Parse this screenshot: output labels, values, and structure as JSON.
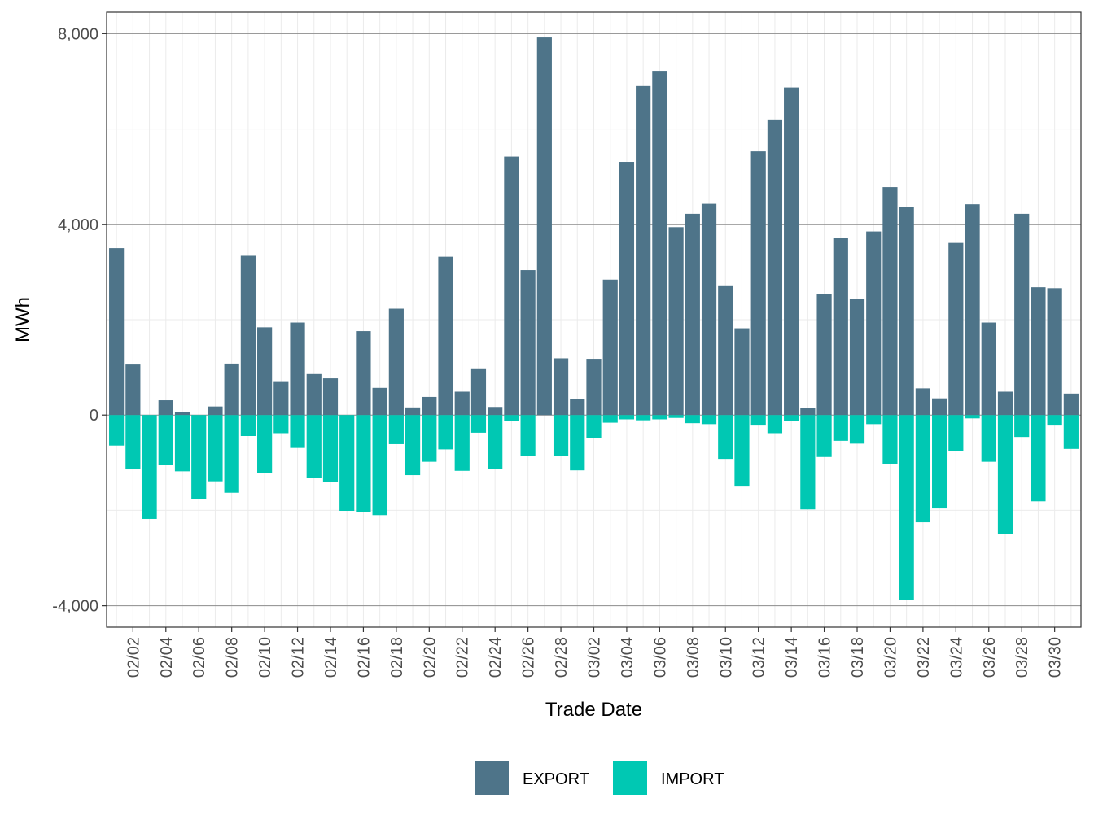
{
  "chart_data": {
    "type": "bar",
    "stacked": "diverging",
    "xlabel": "Trade Date",
    "ylabel": "MWh",
    "ylim": [
      -4450,
      8450
    ],
    "yticks": [
      -4000,
      0,
      4000,
      8000
    ],
    "ytick_labels": [
      "-4,000",
      "0",
      "4,000",
      "8,000"
    ],
    "grid": true,
    "legend_position": "bottom",
    "x": [
      "02/01",
      "02/02",
      "02/03",
      "02/04",
      "02/05",
      "02/06",
      "02/07",
      "02/08",
      "02/09",
      "02/10",
      "02/11",
      "02/12",
      "02/13",
      "02/14",
      "02/15",
      "02/16",
      "02/17",
      "02/18",
      "02/19",
      "02/20",
      "02/21",
      "02/22",
      "02/23",
      "02/24",
      "02/25",
      "02/26",
      "02/27",
      "02/28",
      "03/01",
      "03/02",
      "03/03",
      "03/04",
      "03/05",
      "03/06",
      "03/07",
      "03/08",
      "03/09",
      "03/10",
      "03/11",
      "03/12",
      "03/13",
      "03/14",
      "03/15",
      "03/16",
      "03/17",
      "03/18",
      "03/19",
      "03/20",
      "03/21",
      "03/22",
      "03/23",
      "03/24",
      "03/25",
      "03/26",
      "03/27",
      "03/28",
      "03/29",
      "03/30",
      "03/31"
    ],
    "xtick_labels": [
      "02/02",
      "02/04",
      "02/06",
      "02/08",
      "02/10",
      "02/12",
      "02/14",
      "02/16",
      "02/18",
      "02/20",
      "02/22",
      "02/24",
      "02/26",
      "02/28",
      "03/02",
      "03/04",
      "03/06",
      "03/08",
      "03/10",
      "03/12",
      "03/14",
      "03/16",
      "03/18",
      "03/20",
      "03/22",
      "03/24",
      "03/26",
      "03/28",
      "03/30"
    ],
    "series": [
      {
        "name": "EXPORT",
        "color": "#4e7489",
        "values": [
          3500,
          1060,
          0,
          310,
          60,
          0,
          180,
          1080,
          3340,
          1840,
          710,
          1940,
          860,
          770,
          0,
          1760,
          570,
          2230,
          160,
          380,
          3320,
          490,
          980,
          170,
          5420,
          3040,
          7920,
          1190,
          330,
          1180,
          2840,
          5310,
          6900,
          7220,
          3940,
          4220,
          4430,
          2720,
          1820,
          5530,
          6200,
          6870,
          140,
          2540,
          3710,
          2440,
          3850,
          4780,
          4370,
          560,
          350,
          3610,
          4420,
          1940,
          490,
          4220,
          2680,
          2660,
          450
        ]
      },
      {
        "name": "IMPORT",
        "color": "#00c8b3",
        "values": [
          -640,
          -1140,
          -2180,
          -1050,
          -1180,
          -1760,
          -1390,
          -1630,
          -440,
          -1220,
          -380,
          -690,
          -1320,
          -1400,
          -2010,
          -2030,
          -2100,
          -610,
          -1260,
          -980,
          -720,
          -1170,
          -370,
          -1130,
          -130,
          -850,
          0,
          -860,
          -1160,
          -480,
          -160,
          -90,
          -110,
          -90,
          -60,
          -170,
          -190,
          -920,
          -1500,
          -220,
          -380,
          -130,
          -1980,
          -880,
          -540,
          -600,
          -190,
          -1020,
          -3870,
          -2250,
          -1960,
          -750,
          -70,
          -980,
          -2500,
          -460,
          -1810,
          -220,
          -710
        ]
      }
    ]
  }
}
